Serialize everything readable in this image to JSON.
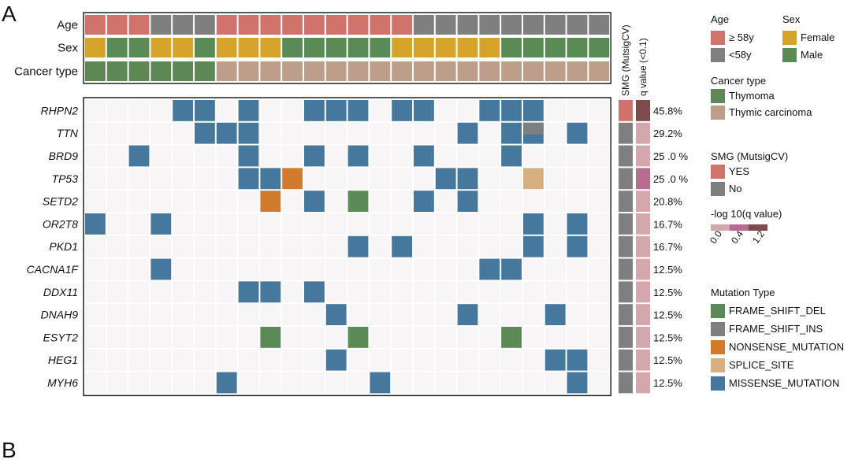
{
  "panels": {
    "a": "A",
    "b": "B"
  },
  "annotation_tracks": [
    "Age",
    "Sex",
    "Cancer type"
  ],
  "samples": 24,
  "age_codes": [
    "O",
    "O",
    "O",
    "Y",
    "Y",
    "Y",
    "O",
    "O",
    "O",
    "O",
    "O",
    "O",
    "O",
    "O",
    "O",
    "Y",
    "Y",
    "Y",
    "Y",
    "Y",
    "Y",
    "Y",
    "Y",
    "Y"
  ],
  "sex_codes": [
    "F",
    "M",
    "M",
    "F",
    "F",
    "M",
    "F",
    "F",
    "F",
    "M",
    "M",
    "M",
    "M",
    "M",
    "F",
    "F",
    "F",
    "F",
    "F",
    "M",
    "M",
    "M",
    "M",
    "M"
  ],
  "cancer_codes": [
    "T",
    "T",
    "T",
    "T",
    "T",
    "T",
    "C",
    "C",
    "C",
    "C",
    "C",
    "C",
    "C",
    "C",
    "C",
    "C",
    "C",
    "C",
    "C",
    "C",
    "C",
    "C",
    "C",
    "C"
  ],
  "genes": [
    {
      "name": "RHPN2",
      "pct": "45.8%",
      "smg": "YES",
      "q": "high"
    },
    {
      "name": "TTN",
      "pct": "29.2%",
      "smg": "No",
      "q": "low"
    },
    {
      "name": "BRD9",
      "pct": "25 .0 %",
      "smg": "No",
      "q": "low"
    },
    {
      "name": "TP53",
      "pct": "25 .0 %",
      "smg": "No",
      "q": "mid"
    },
    {
      "name": "SETD2",
      "pct": "20.8%",
      "smg": "No",
      "q": "low"
    },
    {
      "name": "OR2T8",
      "pct": "16.7%",
      "smg": "No",
      "q": "low"
    },
    {
      "name": "PKD1",
      "pct": "16.7%",
      "smg": "No",
      "q": "low"
    },
    {
      "name": "CACNA1F",
      "pct": "12.5%",
      "smg": "No",
      "q": "low"
    },
    {
      "name": "DDX11",
      "pct": "12.5%",
      "smg": "No",
      "q": "low"
    },
    {
      "name": "DNAH9",
      "pct": "12.5%",
      "smg": "No",
      "q": "low"
    },
    {
      "name": "ESYT2",
      "pct": "12.5%",
      "smg": "No",
      "q": "low"
    },
    {
      "name": "HEG1",
      "pct": "12.5%",
      "smg": "No",
      "q": "low"
    },
    {
      "name": "MYH6",
      "pct": "12.5%",
      "smg": "No",
      "q": "low"
    }
  ],
  "mutations": [
    [
      [
        4,
        "M"
      ],
      [
        5,
        "M"
      ],
      [
        7,
        "M"
      ],
      [
        10,
        "M"
      ],
      [
        11,
        "M"
      ],
      [
        12,
        "M"
      ],
      [
        14,
        "M"
      ],
      [
        15,
        "M"
      ],
      [
        18,
        "M"
      ],
      [
        19,
        "M"
      ],
      [
        20,
        "M"
      ]
    ],
    [
      [
        5,
        "M"
      ],
      [
        6,
        "M"
      ],
      [
        7,
        "M"
      ],
      [
        17,
        "M"
      ],
      [
        19,
        "M"
      ],
      [
        20,
        "I"
      ],
      [
        22,
        "M"
      ]
    ],
    [
      [
        2,
        "M"
      ],
      [
        7,
        "M"
      ],
      [
        10,
        "M"
      ],
      [
        12,
        "M"
      ],
      [
        15,
        "M"
      ],
      [
        19,
        "M"
      ]
    ],
    [
      [
        7,
        "M"
      ],
      [
        8,
        "M"
      ],
      [
        9,
        "N"
      ],
      [
        16,
        "M"
      ],
      [
        17,
        "M"
      ],
      [
        20,
        "S"
      ]
    ],
    [
      [
        8,
        "N"
      ],
      [
        10,
        "M"
      ],
      [
        12,
        "D"
      ],
      [
        15,
        "M"
      ],
      [
        17,
        "M"
      ]
    ],
    [
      [
        0,
        "M"
      ],
      [
        3,
        "M"
      ],
      [
        20,
        "M"
      ],
      [
        22,
        "M"
      ]
    ],
    [
      [
        12,
        "M"
      ],
      [
        14,
        "M"
      ],
      [
        20,
        "M"
      ],
      [
        22,
        "M"
      ]
    ],
    [
      [
        3,
        "M"
      ],
      [
        18,
        "M"
      ],
      [
        19,
        "M"
      ]
    ],
    [
      [
        7,
        "M"
      ],
      [
        8,
        "M"
      ],
      [
        10,
        "M"
      ]
    ],
    [
      [
        11,
        "M"
      ],
      [
        17,
        "M"
      ],
      [
        21,
        "M"
      ]
    ],
    [
      [
        8,
        "D"
      ],
      [
        12,
        "D"
      ],
      [
        19,
        "D"
      ]
    ],
    [
      [
        11,
        "M"
      ],
      [
        21,
        "M"
      ],
      [
        22,
        "M"
      ]
    ],
    [
      [
        6,
        "M"
      ],
      [
        13,
        "M"
      ],
      [
        22,
        "M"
      ]
    ]
  ],
  "side_headers": {
    "smg": "SMG (MutsigCV)",
    "q": "q value (<0.1)"
  },
  "legend": {
    "age": {
      "title": "Age",
      "items": [
        {
          "code": "O",
          "label": "≥ 58y"
        },
        {
          "code": "Y",
          "label": "<58y"
        }
      ]
    },
    "sex": {
      "title": "Sex",
      "items": [
        {
          "code": "F",
          "label": "Female"
        },
        {
          "code": "M",
          "label": "Male"
        }
      ]
    },
    "cancer": {
      "title": "Cancer type",
      "items": [
        {
          "code": "T",
          "label": "Thymoma"
        },
        {
          "code": "C",
          "label": "Thymic carcinoma"
        }
      ]
    },
    "smg": {
      "title": "SMG (MutsigCV)",
      "items": [
        {
          "code": "YES",
          "label": "YES"
        },
        {
          "code": "No",
          "label": "No"
        }
      ]
    },
    "qval": {
      "title": "-log 10(q value)",
      "ticks": [
        "0.0",
        "0.4",
        "1.2"
      ]
    },
    "mutation": {
      "title": "Mutation Type",
      "items": [
        {
          "code": "D",
          "label": "FRAME_SHIFT_DEL"
        },
        {
          "code": "I",
          "label": "FRAME_SHIFT_INS"
        },
        {
          "code": "N",
          "label": "NONSENSE_MUTATION"
        },
        {
          "code": "S",
          "label": "SPLICE_SITE"
        },
        {
          "code": "M",
          "label": "MISSENSE_MUTATION"
        }
      ]
    }
  },
  "colors": {
    "age": {
      "O": "#d0736c",
      "Y": "#7f7f7f"
    },
    "sex": {
      "F": "#d6a42a",
      "M": "#5a8a55"
    },
    "cancer": {
      "T": "#5e8756",
      "C": "#bc9e8a"
    },
    "mut": {
      "D": "#5b8a57",
      "I": "#7f7f7f",
      "N": "#d27b2c",
      "S": "#d6b081",
      "M": "#45789c"
    },
    "smg": {
      "YES": "#d0736c",
      "No": "#7f7f7f"
    },
    "q": {
      "low": "#d4a7ad",
      "mid": "#b86c90",
      "high": "#7d4b4b"
    },
    "bg": "#f7f5f6",
    "grid": "#ffffff"
  }
}
